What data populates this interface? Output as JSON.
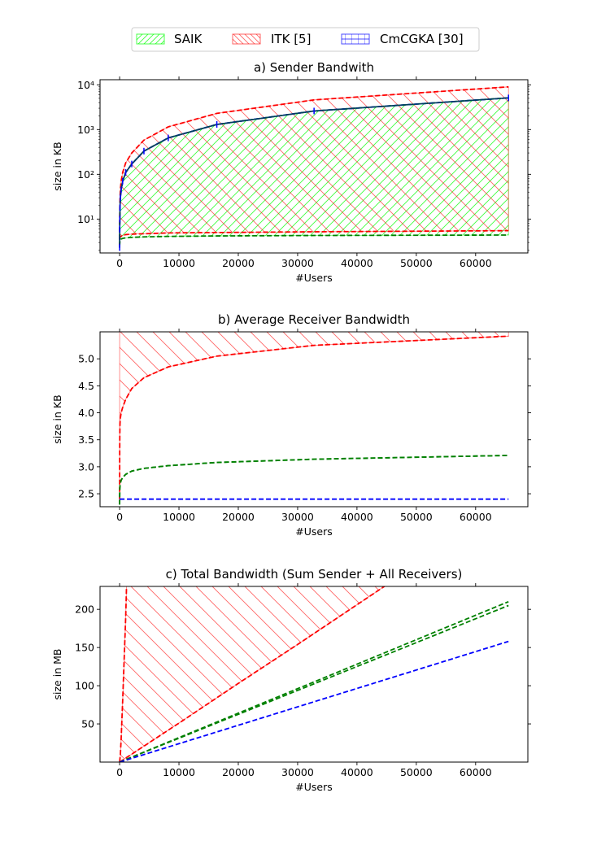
{
  "legend": {
    "placement": "top-center",
    "entries": [
      {
        "label": "SAIK",
        "color": "#00ff00",
        "hatch": "diagonal-up"
      },
      {
        "label": "ITK [5]",
        "color": "#ff0000",
        "hatch": "diagonal-down"
      },
      {
        "label": "CmCGKA [30]",
        "color": "#0000ff",
        "hatch": "grid"
      }
    ]
  },
  "chart_data": [
    {
      "type": "area",
      "title": "a) Sender Bandwith",
      "xlabel": "#Users",
      "ylabel": "size in KB",
      "yscale": "log",
      "xlim": [
        -3300,
        68800
      ],
      "ylim": [
        1.75,
        13000
      ],
      "xticks": [
        0,
        10000,
        20000,
        30000,
        40000,
        50000,
        60000
      ],
      "xtick_labels": [
        "0",
        "10000",
        "20000",
        "30000",
        "40000",
        "50000",
        "60000"
      ],
      "yticks": [
        10,
        100,
        1000,
        10000
      ],
      "ytick_labels": [
        "10¹",
        "10²",
        "10³",
        "10⁴"
      ],
      "series": [
        {
          "role": "itk-upper",
          "color": "#ff0000",
          "style": "dashed",
          "band": "ITK [5]",
          "x": [
            2,
            16,
            32,
            64,
            128,
            256,
            512,
            1024,
            2048,
            4096,
            8192,
            16384,
            32768,
            65536
          ],
          "y": [
            3.5,
            10,
            17,
            28,
            45,
            70,
            110,
            180,
            300,
            580,
            1150,
            2300,
            4600,
            9000
          ]
        },
        {
          "role": "itk-lower",
          "color": "#ff0000",
          "style": "dashed",
          "band": "ITK [5]",
          "x": [
            2,
            64,
            512,
            1024,
            2048,
            4096,
            8192,
            16384,
            32768,
            65536
          ],
          "y": [
            3.5,
            4.0,
            4.3,
            4.5,
            4.6,
            4.7,
            4.9,
            5.0,
            5.2,
            5.5
          ]
        },
        {
          "role": "saik-upper",
          "color": "#008000",
          "style": "dashed",
          "band": "SAIK",
          "x": [
            2,
            16,
            32,
            64,
            128,
            256,
            512,
            1024,
            2048,
            4096,
            8192,
            16384,
            32768,
            65536
          ],
          "y": [
            2.5,
            6,
            10,
            18,
            30,
            45,
            70,
            110,
            170,
            330,
            650,
            1300,
            2600,
            5100
          ]
        },
        {
          "role": "saik-lower",
          "color": "#008000",
          "style": "dashed",
          "band": "SAIK",
          "x": [
            2,
            64,
            512,
            1024,
            2048,
            4096,
            8192,
            16384,
            32768,
            65536
          ],
          "y": [
            2.5,
            3.5,
            3.7,
            3.8,
            3.9,
            4.0,
            4.1,
            4.2,
            4.3,
            4.4
          ]
        },
        {
          "role": "cmcgka",
          "color": "#0000ff",
          "style": "dashed",
          "band": "CmCGKA [30]",
          "x": [
            2,
            16,
            32,
            64,
            128,
            256,
            512,
            1024,
            2048,
            4096,
            8192,
            16384,
            32768,
            65536
          ],
          "y": [
            2.3,
            6,
            10,
            18,
            30,
            45,
            70,
            110,
            170,
            330,
            650,
            1300,
            2600,
            5100
          ]
        },
        {
          "role": "solid",
          "color": "#003f5c",
          "style": "solid",
          "band": "",
          "x": [
            2,
            16,
            32,
            64,
            128,
            256,
            512,
            1024,
            2048,
            4096,
            8192,
            16384,
            32768,
            65536
          ],
          "y": [
            2.3,
            6,
            10,
            18,
            30,
            45,
            70,
            110,
            170,
            330,
            650,
            1300,
            2600,
            5100
          ]
        }
      ],
      "markers": {
        "color": "#0000ff",
        "x": [
          2,
          16,
          32,
          64,
          128,
          256,
          512,
          1024,
          2048,
          4096,
          8192,
          16384,
          32768,
          65536
        ]
      },
      "fills": [
        {
          "band": "SAIK",
          "hatch": "diagonal-up",
          "color": "#00ff00",
          "upper": "saik-upper",
          "lower": "saik-lower"
        },
        {
          "band": "ITK [5]",
          "hatch": "diagonal-down",
          "color": "#ff0000",
          "upper": "itk-upper",
          "lower": "itk-lower"
        }
      ]
    },
    {
      "type": "area",
      "title": "b) Average Receiver Bandwidth",
      "xlabel": "#Users",
      "ylabel": "size in KB",
      "yscale": "linear",
      "xlim": [
        -3300,
        68800
      ],
      "ylim": [
        2.26,
        5.5
      ],
      "xticks": [
        0,
        10000,
        20000,
        30000,
        40000,
        50000,
        60000
      ],
      "xtick_labels": [
        "0",
        "10000",
        "20000",
        "30000",
        "40000",
        "50000",
        "60000"
      ],
      "yticks": [
        2.5,
        3.0,
        3.5,
        4.0,
        4.5,
        5.0
      ],
      "ytick_labels": [
        "2.5",
        "3.0",
        "3.5",
        "4.0",
        "4.5",
        "5.0"
      ],
      "series": [
        {
          "role": "itk-upper",
          "color": "#ff0000",
          "style": "dashed",
          "band": "ITK [5]",
          "x": [
            2,
            65536
          ],
          "y": [
            5.6,
            5.6
          ]
        },
        {
          "role": "itk-lower",
          "color": "#ff0000",
          "style": "dashed",
          "band": "ITK [5]",
          "x": [
            2,
            16,
            32,
            64,
            128,
            256,
            512,
            1024,
            2048,
            4096,
            8192,
            16384,
            32768,
            65536
          ],
          "y": [
            2.4,
            3.3,
            3.6,
            3.8,
            3.9,
            4.0,
            4.1,
            4.25,
            4.45,
            4.65,
            4.85,
            5.05,
            5.25,
            5.42
          ]
        },
        {
          "role": "saik-upper",
          "color": "#008000",
          "style": "dashed",
          "band": "SAIK",
          "x": [
            2,
            16,
            32,
            64,
            128,
            256,
            512,
            1024,
            2048,
            4096,
            8192,
            16384,
            32768,
            65536
          ],
          "y": [
            2.3,
            2.5,
            2.6,
            2.65,
            2.7,
            2.75,
            2.8,
            2.86,
            2.92,
            2.97,
            3.02,
            3.08,
            3.14,
            3.21
          ]
        },
        {
          "role": "saik-lower",
          "color": "#008000",
          "style": "dashed",
          "band": "SAIK",
          "x": [
            2,
            16,
            32,
            64,
            128,
            256,
            512,
            1024,
            2048,
            4096,
            8192,
            16384,
            32768,
            65536
          ],
          "y": [
            2.3,
            2.5,
            2.6,
            2.65,
            2.7,
            2.75,
            2.8,
            2.86,
            2.92,
            2.97,
            3.02,
            3.08,
            3.14,
            3.21
          ]
        },
        {
          "role": "cmcgka",
          "color": "#0000ff",
          "style": "dashed",
          "band": "CmCGKA [30]",
          "x": [
            2,
            65536
          ],
          "y": [
            2.4,
            2.4
          ]
        }
      ],
      "markers": null,
      "fills": [
        {
          "band": "ITK [5]",
          "hatch": "diagonal-down",
          "color": "#ff0000",
          "upper": "itk-upper",
          "lower": "itk-lower"
        }
      ]
    },
    {
      "type": "area",
      "title": "c) Total Bandwidth (Sum Sender + All Receivers)",
      "xlabel": "#Users",
      "ylabel": "size in MB",
      "yscale": "linear",
      "xlim": [
        -3300,
        68800
      ],
      "ylim": [
        0,
        230
      ],
      "xticks": [
        0,
        10000,
        20000,
        30000,
        40000,
        50000,
        60000
      ],
      "xtick_labels": [
        "0",
        "10000",
        "20000",
        "30000",
        "40000",
        "50000",
        "60000"
      ],
      "yticks": [
        50,
        100,
        150,
        200
      ],
      "ytick_labels": [
        "50",
        "100",
        "150",
        "200"
      ],
      "series": [
        {
          "role": "itk-upper",
          "color": "#ff0000",
          "style": "dashed",
          "band": "ITK [5]",
          "x": [
            2,
            128,
            256,
            512,
            1024,
            1200
          ],
          "y": [
            0,
            10,
            30,
            80,
            190,
            240
          ]
        },
        {
          "role": "itk-lower",
          "color": "#ff0000",
          "style": "dashed",
          "band": "ITK [5]",
          "x": [
            2,
            10000,
            20000,
            30000,
            40000,
            45000
          ],
          "y": [
            0,
            51,
            103,
            154,
            206,
            232
          ]
        },
        {
          "role": "saik-upper",
          "color": "#008000",
          "style": "dashed",
          "band": "SAIK",
          "x": [
            2,
            65536
          ],
          "y": [
            0,
            210
          ]
        },
        {
          "role": "saik-lower",
          "color": "#008000",
          "style": "dashed",
          "band": "SAIK",
          "x": [
            2,
            65536
          ],
          "y": [
            0,
            205
          ]
        },
        {
          "role": "cmcgka",
          "color": "#0000ff",
          "style": "dashed",
          "band": "CmCGKA [30]",
          "x": [
            2,
            65536
          ],
          "y": [
            0,
            158
          ]
        }
      ],
      "markers": null,
      "fills": [
        {
          "band": "ITK [5]",
          "hatch": "diagonal-down",
          "color": "#ff0000",
          "upper": "itk-upper",
          "lower": "itk-lower"
        }
      ]
    }
  ]
}
